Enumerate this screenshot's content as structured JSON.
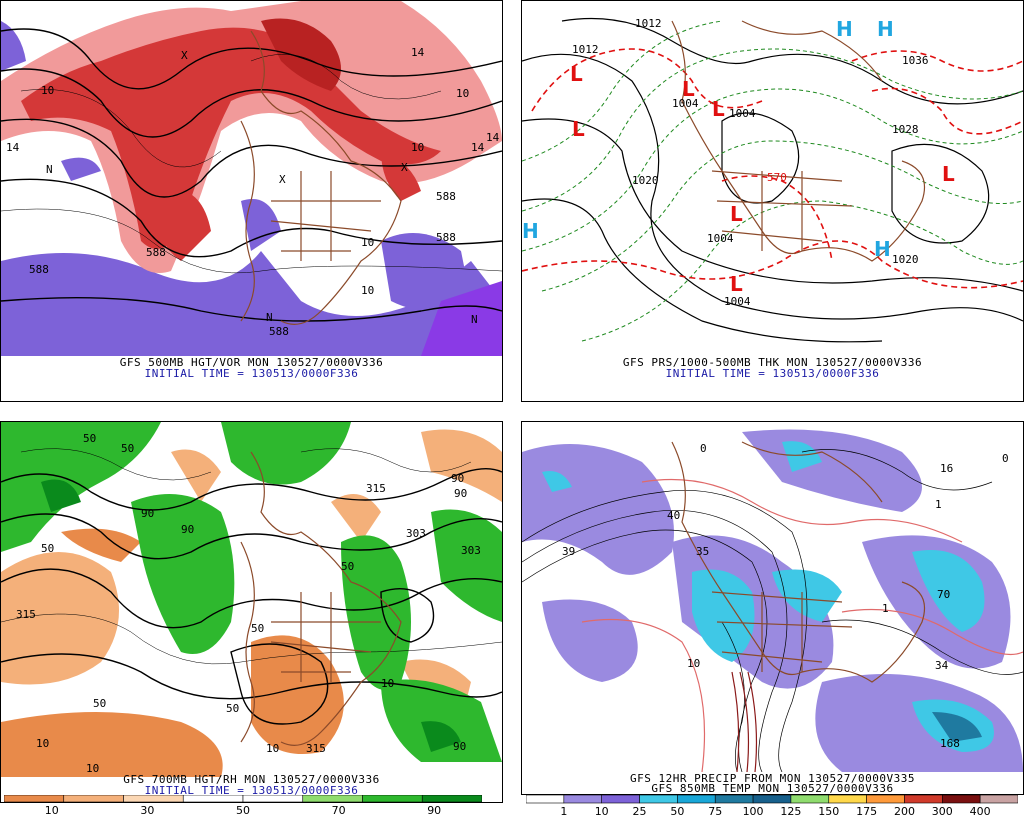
{
  "panels": [
    {
      "id": "top-left",
      "caption_line1": "GFS 500MB HGT/VOR MON 130527/0000V336",
      "caption_line2": "INITIAL TIME = 130513/0000F336",
      "labels": [
        "10",
        "14",
        "588",
        "588",
        "14",
        "10",
        "588",
        "N",
        "X",
        "X",
        "X",
        "14",
        "10",
        "588",
        "14",
        "10",
        "N",
        "N",
        "10",
        "588"
      ]
    },
    {
      "id": "top-right",
      "caption_line1": "GFS PRS/1000-500MB THK MON 130527/0000V336",
      "caption_line2": "INITIAL TIME = 130513/0000F336",
      "labels": [
        "1012",
        "1012",
        "1004",
        "1004",
        "1020",
        "1004",
        "1004",
        "1020",
        "1028",
        "1036",
        "570"
      ],
      "highs_lows": [
        "L",
        "L",
        "L",
        "L",
        "L",
        "L",
        "L",
        "H",
        "H",
        "H",
        "H"
      ]
    },
    {
      "id": "bottom-left",
      "caption_line1": "GFS 700MB HGT/RH MON 130527/0000V336",
      "caption_line2": "INITIAL TIME = 130513/0000F336",
      "labels": [
        "50",
        "50",
        "90",
        "90",
        "315",
        "315",
        "303",
        "90",
        "50",
        "90",
        "303",
        "50",
        "50",
        "10",
        "10",
        "50",
        "315",
        "10",
        "90",
        "50",
        "10"
      ]
    },
    {
      "id": "bottom-right",
      "caption_line1": "GFS 12HR PRECIP FROM MON 130527/0000V335",
      "caption_line2": "GFS 850MB TEMP MON 130527/0000V336",
      "labels": [
        "39",
        "40",
        "35",
        "10",
        "16",
        "1",
        "70",
        "34",
        "168",
        "0",
        "0",
        "1"
      ]
    }
  ],
  "rh_scale": {
    "ticks": [
      "10",
      "30",
      "50",
      "70",
      "90"
    ],
    "colors": [
      "#e88a4a",
      "#f4b07a",
      "#fbd7b4",
      "#ffffff",
      "#ffffff",
      "#8fdc6e",
      "#2eb82e",
      "#0a8a1c"
    ]
  },
  "precip_scale": {
    "ticks": [
      "1",
      "10",
      "25",
      "50",
      "75",
      "100",
      "125",
      "150",
      "175",
      "200",
      "300",
      "400"
    ],
    "colors": [
      "#ffffff",
      "#9a8ae0",
      "#7d62d8",
      "#3fc8e6",
      "#19a7d8",
      "#1f7aa0",
      "#17608c",
      "#8fdc6e",
      "#ffd84a",
      "#ff9a3a",
      "#d03a2a",
      "#7a1010",
      "#c9a3a3"
    ]
  },
  "colors": {
    "vort_red": "#d43838",
    "vort_pink": "#f19a9a",
    "vort_purple": "#7d62d8",
    "map_brown": "#8b4a2a",
    "contour_black": "#000000",
    "dash_green": "#1f8a1f",
    "dash_red": "#e01010",
    "high_blue": "#21a6e0",
    "low_red": "#e01010"
  }
}
